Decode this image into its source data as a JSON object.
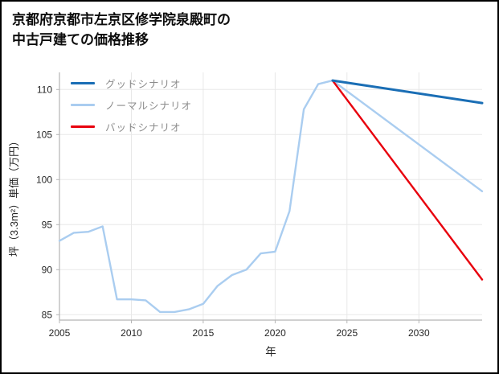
{
  "title": {
    "line1": "京都府京都市左京区修学院泉殿町の",
    "line2": "中古戸建ての価格推移"
  },
  "chart_data": {
    "type": "line",
    "title": "京都府京都市左京区修学院泉殿町の中古戸建ての価格推移",
    "xlabel": "年",
    "ylabel": "坪（3.3m²）単価（万円）",
    "xlim": [
      2005,
      2034.4
    ],
    "ylim": [
      84.4,
      111.9
    ],
    "xticks": [
      2005,
      2010,
      2015,
      2020,
      2025,
      2030
    ],
    "yticks": [
      85,
      90,
      95,
      100,
      105,
      110
    ],
    "grid": true,
    "legend_position": "upper-left",
    "colors": {
      "grid": "#e8e8e8",
      "spine": "#b5b5b5",
      "tick": "#262626",
      "good": "#1a6eb5",
      "normal": "#aacdf0",
      "bad": "#e8000d"
    },
    "legend": [
      {
        "label": "グッドシナリオ",
        "color": "#1a6eb5"
      },
      {
        "label": "ノーマルシナリオ",
        "color": "#aacdf0"
      },
      {
        "label": "バッドシナリオ",
        "color": "#e8000d"
      }
    ],
    "series": [
      {
        "id": "history",
        "color": "#aacdf0",
        "width": 2.4,
        "x": [
          2005,
          2006,
          2007,
          2008,
          2009,
          2010,
          2011,
          2012,
          2013,
          2014,
          2015,
          2016,
          2017,
          2018,
          2019,
          2020,
          2021,
          2022,
          2023,
          2024
        ],
        "y": [
          93.2,
          94.1,
          94.2,
          94.8,
          86.7,
          86.7,
          86.6,
          85.3,
          85.3,
          85.6,
          86.2,
          88.2,
          89.4,
          90.0,
          91.8,
          92.0,
          96.5,
          107.8,
          110.6,
          111.0
        ]
      },
      {
        "id": "normal-scenario",
        "color": "#aacdf0",
        "width": 2.4,
        "x": [
          2024,
          2034.4
        ],
        "y": [
          111.0,
          98.7
        ]
      },
      {
        "id": "bad-scenario",
        "color": "#e8000d",
        "width": 2.4,
        "x": [
          2024,
          2034.4
        ],
        "y": [
          111.0,
          88.9
        ]
      },
      {
        "id": "good-scenario",
        "color": "#1a6eb5",
        "width": 3.0,
        "x": [
          2024,
          2034.4
        ],
        "y": [
          111.0,
          108.5
        ]
      }
    ]
  }
}
